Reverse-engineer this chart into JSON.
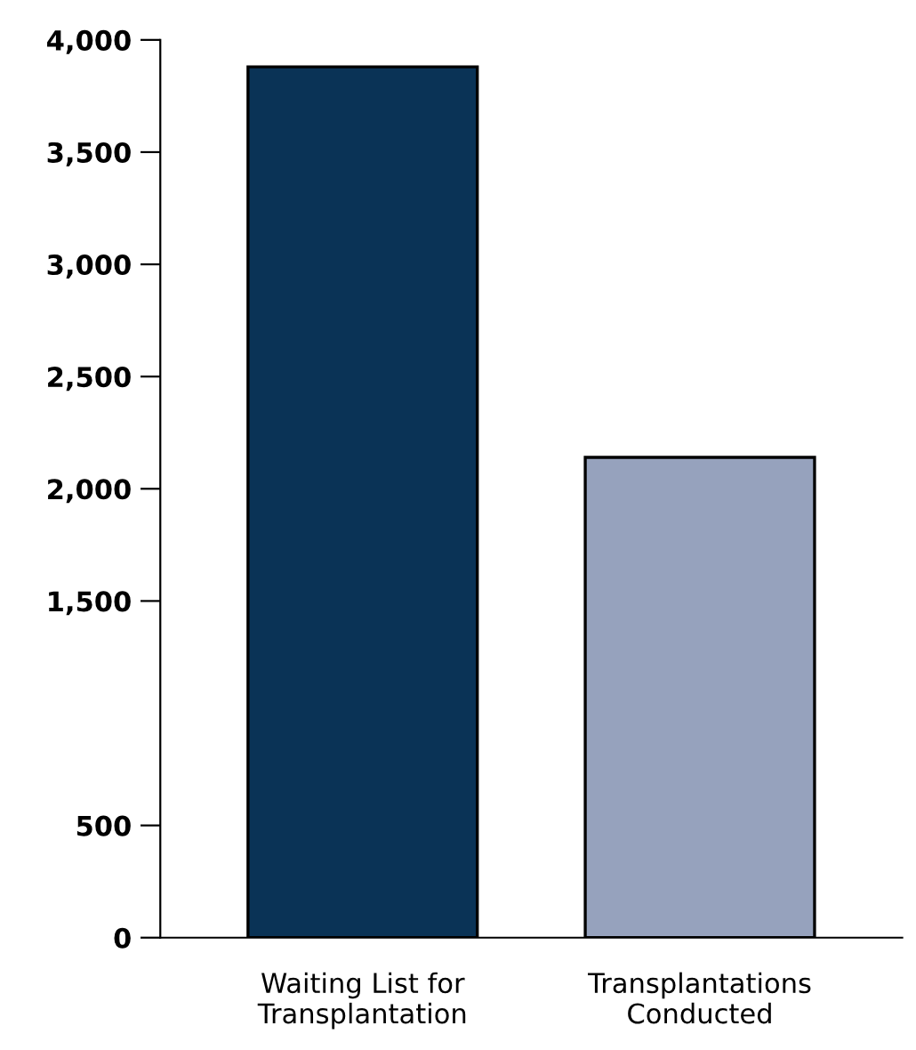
{
  "chart_data": {
    "type": "bar",
    "categories": [
      "Waiting List for\nTransplantation",
      "Transplantations\nConducted"
    ],
    "values": [
      3880,
      2140
    ],
    "colors": [
      "#0a3356",
      "#96a2bd"
    ],
    "ylim": [
      0,
      4000
    ],
    "yticks": [
      {
        "value": 0,
        "label": "0"
      },
      {
        "value": 500,
        "label": "500"
      },
      {
        "value": 1500,
        "label": "1,500"
      },
      {
        "value": 2000,
        "label": "2,000"
      },
      {
        "value": 2500,
        "label": "2,500"
      },
      {
        "value": 3000,
        "label": "3,000"
      },
      {
        "value": 3500,
        "label": "3,500"
      },
      {
        "value": 4000,
        "label": "4,000"
      }
    ],
    "grid": false
  }
}
